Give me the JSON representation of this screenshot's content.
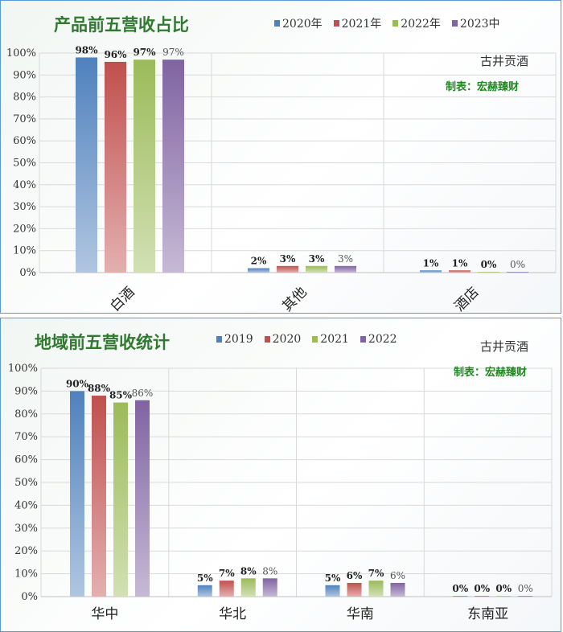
{
  "colors": {
    "series": [
      "#4f81bd",
      "#c0504d",
      "#9bbb59",
      "#8064a2"
    ],
    "title": "#2f7a2f",
    "maker": "#1f8a1f"
  },
  "chart_data": [
    {
      "type": "bar",
      "title": "产品前五营收占比",
      "note": "古井贡酒",
      "maker": "制表：宏赫臻财",
      "categories": [
        "白酒",
        "其他",
        "酒店"
      ],
      "series": [
        {
          "name": "2020年",
          "values": [
            98,
            2,
            1
          ],
          "labels": [
            "98%",
            "2%",
            "1%"
          ]
        },
        {
          "name": "2021年",
          "values": [
            96,
            3,
            1
          ],
          "labels": [
            "96%",
            "3%",
            "1%"
          ]
        },
        {
          "name": "2022年",
          "values": [
            97,
            3,
            0
          ],
          "labels": [
            "97%",
            "3%",
            "0%"
          ]
        },
        {
          "name": "2023中",
          "values": [
            97,
            3,
            0
          ],
          "labels": [
            "97%",
            "3%",
            "0%"
          ]
        }
      ],
      "yticks": [
        "0%",
        "10%",
        "20%",
        "30%",
        "40%",
        "50%",
        "60%",
        "70%",
        "80%",
        "90%",
        "100%"
      ],
      "ylim": [
        0,
        100
      ],
      "grid": true,
      "legend": "top"
    },
    {
      "type": "bar",
      "title": "地域前五营收统计",
      "note": "古井贡酒",
      "maker": "制表：宏赫臻财",
      "categories": [
        "华中",
        "华北",
        "华南",
        "东南亚"
      ],
      "series": [
        {
          "name": "2019",
          "values": [
            90,
            5,
            5,
            0
          ],
          "labels": [
            "90%",
            "5%",
            "5%",
            "0%"
          ]
        },
        {
          "name": "2020",
          "values": [
            88,
            7,
            6,
            0
          ],
          "labels": [
            "88%",
            "7%",
            "6%",
            "0%"
          ]
        },
        {
          "name": "2021",
          "values": [
            85,
            8,
            7,
            0
          ],
          "labels": [
            "85%",
            "8%",
            "7%",
            "0%"
          ]
        },
        {
          "name": "2022",
          "values": [
            86,
            8,
            6,
            0
          ],
          "labels": [
            "86%",
            "8%",
            "6%",
            "0%"
          ]
        }
      ],
      "yticks": [
        "0%",
        "10%",
        "20%",
        "30%",
        "40%",
        "50%",
        "60%",
        "70%",
        "80%",
        "90%",
        "100%"
      ],
      "ylim": [
        0,
        100
      ],
      "grid": true,
      "legend": "top"
    }
  ]
}
